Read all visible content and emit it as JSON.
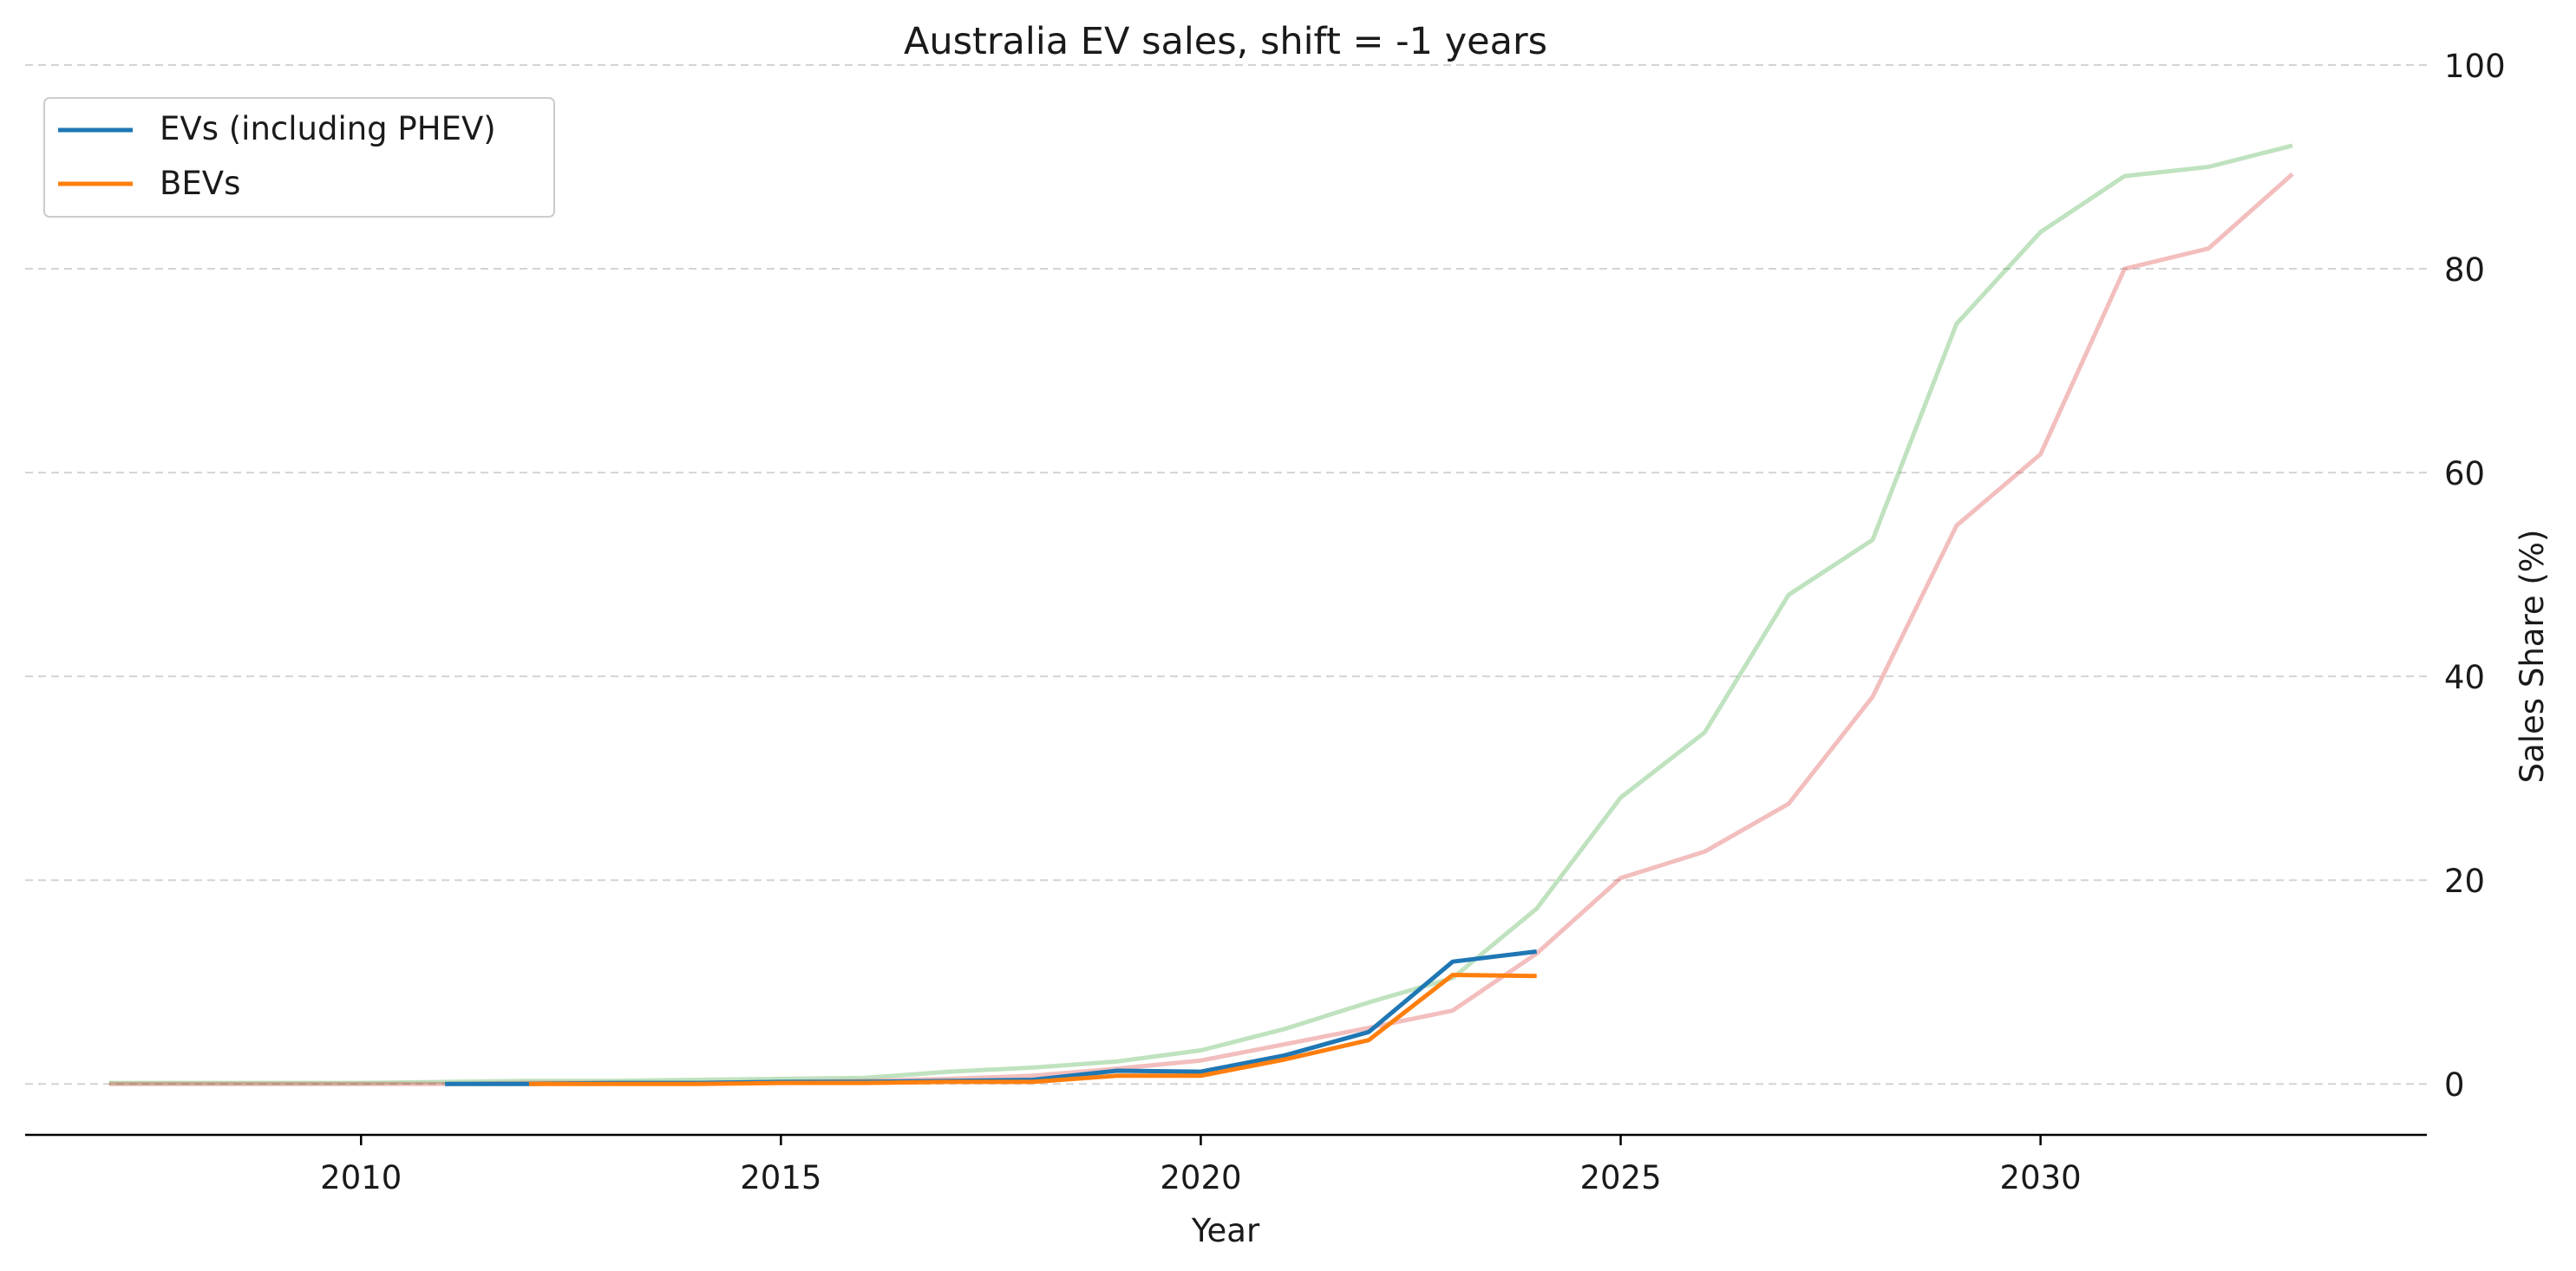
{
  "chart_data": {
    "type": "line",
    "title": "Australia EV sales, shift = -1 years",
    "xlabel": "Year",
    "ylabel": "Sales Share (%)",
    "xlim": [
      2006,
      2034.6
    ],
    "ylim": [
      -5,
      104
    ],
    "x_ticks": [
      2010,
      2015,
      2020,
      2025,
      2030
    ],
    "y_ticks": [
      0,
      20,
      40,
      60,
      80,
      100
    ],
    "y_axis_side": "right",
    "grid": "horizontal dashed",
    "legend_position": "top-left",
    "series": [
      {
        "name": "EVs (including PHEV)",
        "color": "#1f77b4",
        "opacity": 1,
        "in_legend": true,
        "x": [
          2011,
          2012,
          2013,
          2014,
          2015,
          2016,
          2017,
          2018,
          2019,
          2020,
          2021,
          2022,
          2023,
          2024
        ],
        "y": [
          0.0,
          0.0,
          0.1,
          0.1,
          0.2,
          0.2,
          0.3,
          0.4,
          1.3,
          1.2,
          2.8,
          5.1,
          12.0,
          13.0
        ]
      },
      {
        "name": "BEVs",
        "color": "#ff7f0e",
        "opacity": 1,
        "in_legend": true,
        "x": [
          2012,
          2013,
          2014,
          2015,
          2016,
          2017,
          2018,
          2019,
          2020,
          2021,
          2022,
          2023,
          2024
        ],
        "y": [
          0.0,
          0.0,
          0.0,
          0.1,
          0.1,
          0.2,
          0.2,
          0.8,
          0.8,
          2.4,
          4.3,
          10.7,
          10.6
        ]
      },
      {
        "color": "#2ca02c",
        "opacity": 0.3,
        "in_legend": false,
        "x": [
          2007,
          2008,
          2009,
          2010,
          2011,
          2012,
          2013,
          2014,
          2015,
          2016,
          2017,
          2018,
          2019,
          2020,
          2021,
          2022,
          2023,
          2024,
          2025,
          2026,
          2027,
          2028,
          2029,
          2030,
          2031,
          2032,
          2033
        ],
        "y": [
          0.1,
          0.1,
          0.1,
          0.1,
          0.2,
          0.3,
          0.3,
          0.4,
          0.5,
          0.6,
          1.2,
          1.6,
          2.2,
          3.3,
          5.4,
          8.0,
          10.4,
          17.2,
          28.1,
          34.5,
          48.0,
          53.4,
          74.6,
          83.6,
          89.1,
          90.0,
          92.1
        ]
      },
      {
        "color": "#d62728",
        "opacity": 0.3,
        "in_legend": false,
        "x": [
          2007,
          2008,
          2009,
          2010,
          2011,
          2012,
          2013,
          2014,
          2015,
          2016,
          2017,
          2018,
          2019,
          2020,
          2021,
          2022,
          2023,
          2024,
          2025,
          2026,
          2027,
          2028,
          2029,
          2030,
          2031,
          2032,
          2033
        ],
        "y": [
          0.0,
          0.0,
          0.0,
          0.0,
          0.0,
          0.1,
          0.1,
          0.1,
          0.2,
          0.3,
          0.5,
          0.8,
          1.5,
          2.3,
          3.9,
          5.5,
          7.2,
          12.8,
          20.2,
          22.8,
          27.5,
          38.0,
          54.8,
          61.8,
          80.0,
          82.0,
          89.3
        ]
      }
    ]
  }
}
